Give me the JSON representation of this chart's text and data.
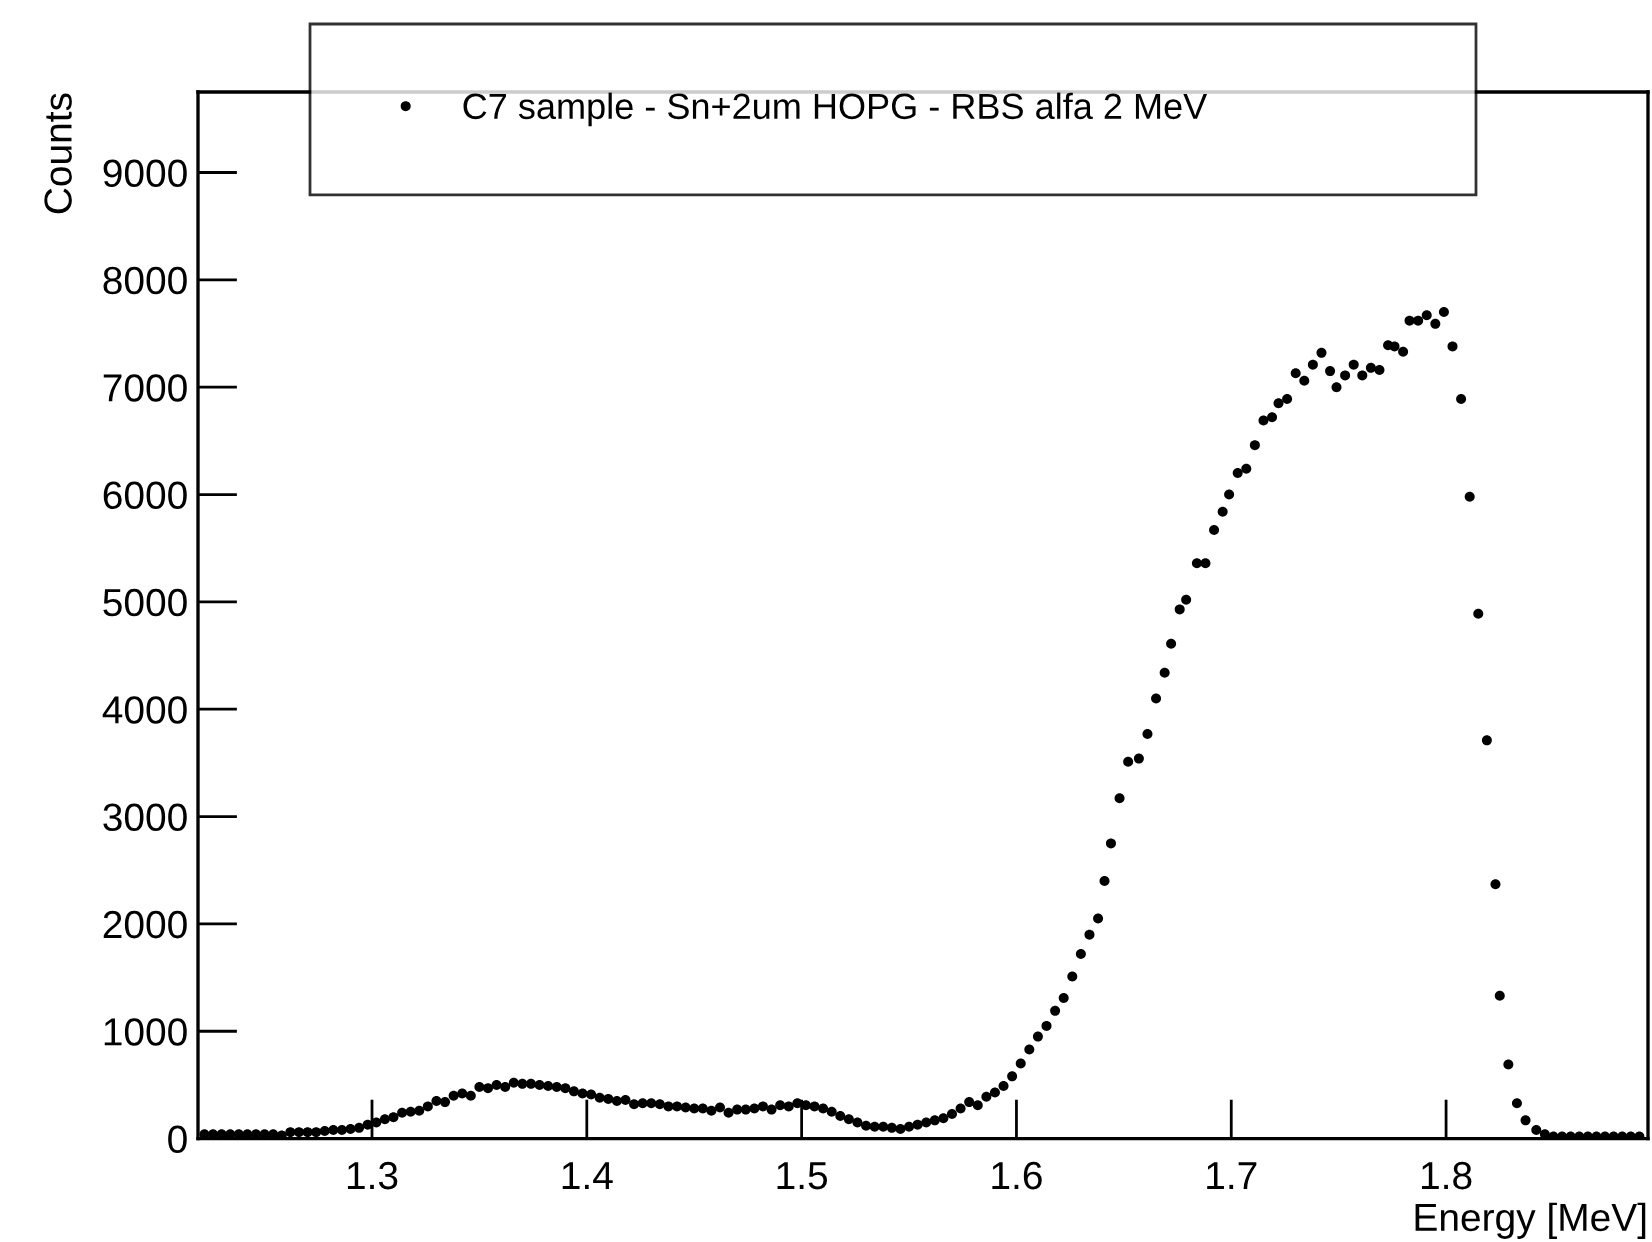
{
  "chart_data": {
    "type": "scatter",
    "xlabel": "Energy [MeV]",
    "ylabel": "Counts",
    "xlim": [
      1.219,
      1.894
    ],
    "ylim": [
      0,
      9750
    ],
    "xticks": [
      1.3,
      1.4,
      1.5,
      1.6,
      1.7,
      1.8
    ],
    "yticks": [
      0,
      1000,
      2000,
      3000,
      4000,
      5000,
      6000,
      7000,
      8000,
      9000
    ],
    "grid": false,
    "legend": "top",
    "marker": "circle",
    "series": [
      {
        "name": "C7 sample - Sn+2um HOPG - RBS alfa 2 MeV",
        "color": "#000000",
        "x": [
          1.222,
          1.226,
          1.23,
          1.234,
          1.238,
          1.242,
          1.246,
          1.25,
          1.254,
          1.258,
          1.262,
          1.266,
          1.27,
          1.274,
          1.278,
          1.282,
          1.286,
          1.29,
          1.294,
          1.298,
          1.302,
          1.306,
          1.31,
          1.314,
          1.318,
          1.322,
          1.326,
          1.33,
          1.334,
          1.338,
          1.342,
          1.346,
          1.35,
          1.354,
          1.358,
          1.362,
          1.366,
          1.37,
          1.374,
          1.378,
          1.382,
          1.386,
          1.39,
          1.394,
          1.398,
          1.402,
          1.406,
          1.41,
          1.414,
          1.418,
          1.422,
          1.426,
          1.43,
          1.434,
          1.438,
          1.442,
          1.446,
          1.45,
          1.454,
          1.458,
          1.462,
          1.466,
          1.47,
          1.474,
          1.478,
          1.482,
          1.486,
          1.49,
          1.494,
          1.498,
          1.502,
          1.506,
          1.51,
          1.514,
          1.518,
          1.522,
          1.526,
          1.53,
          1.534,
          1.538,
          1.542,
          1.546,
          1.55,
          1.554,
          1.558,
          1.562,
          1.566,
          1.57,
          1.574,
          1.578,
          1.582,
          1.586,
          1.59,
          1.594,
          1.598,
          1.602,
          1.606,
          1.61,
          1.614,
          1.618,
          1.622,
          1.626,
          1.63,
          1.634,
          1.638,
          1.641,
          1.644,
          1.648,
          1.652,
          1.657,
          1.661,
          1.665,
          1.669,
          1.672,
          1.676,
          1.679,
          1.684,
          1.688,
          1.692,
          1.696,
          1.699,
          1.703,
          1.707,
          1.711,
          1.715,
          1.719,
          1.722,
          1.726,
          1.73,
          1.734,
          1.738,
          1.742,
          1.746,
          1.749,
          1.753,
          1.757,
          1.761,
          1.765,
          1.769,
          1.773,
          1.776,
          1.78,
          1.783,
          1.787,
          1.791,
          1.795,
          1.799,
          1.803,
          1.807,
          1.811,
          1.815,
          1.819,
          1.823,
          1.825,
          1.829,
          1.833,
          1.837,
          1.842,
          1.846,
          1.85,
          1.854,
          1.858,
          1.862,
          1.866,
          1.87,
          1.874,
          1.878,
          1.882,
          1.886,
          1.89
        ],
        "values": [
          40,
          40,
          40,
          40,
          40,
          40,
          40,
          40,
          40,
          30,
          60,
          60,
          60,
          60,
          70,
          80,
          80,
          90,
          100,
          130,
          150,
          180,
          200,
          240,
          250,
          260,
          300,
          350,
          340,
          400,
          420,
          400,
          480,
          470,
          500,
          480,
          520,
          510,
          510,
          500,
          490,
          480,
          470,
          440,
          420,
          410,
          380,
          370,
          350,
          360,
          320,
          330,
          330,
          320,
          300,
          300,
          290,
          280,
          280,
          260,
          290,
          240,
          270,
          270,
          280,
          300,
          270,
          310,
          300,
          330,
          310,
          300,
          280,
          250,
          210,
          180,
          150,
          120,
          110,
          110,
          100,
          90,
          110,
          130,
          150,
          170,
          190,
          230,
          280,
          340,
          310,
          390,
          430,
          490,
          580,
          700,
          830,
          950,
          1050,
          1190,
          1310,
          1510,
          1720,
          1900,
          2050,
          2400,
          2750,
          3170,
          3510,
          3540,
          3770,
          4100,
          4340,
          4610,
          4930,
          5020,
          5360,
          5360,
          5670,
          5840,
          6000,
          6200,
          6240,
          6460,
          6690,
          6720,
          6850,
          6890,
          7130,
          7060,
          7210,
          7320,
          7150,
          7000,
          7110,
          7210,
          7110,
          7180,
          7160,
          7390,
          7380,
          7330,
          7620,
          7620,
          7670,
          7590,
          7700,
          7380,
          6890,
          5980,
          4890,
          3710,
          2370,
          1330,
          690,
          330,
          170,
          80,
          40,
          20,
          20,
          20,
          20,
          20,
          20,
          20,
          20,
          20,
          20,
          20
        ]
      }
    ]
  }
}
